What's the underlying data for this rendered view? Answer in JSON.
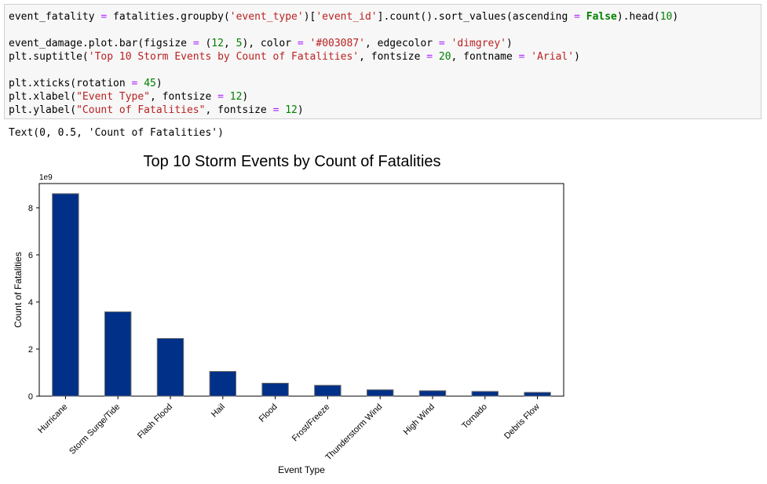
{
  "code_cell": {
    "lines": [
      [
        [
          "plain",
          "event_fatality "
        ],
        [
          "op",
          "="
        ],
        [
          "plain",
          " fatalities.groupby("
        ],
        [
          "str",
          "'event_type'"
        ],
        [
          "plain",
          ")["
        ],
        [
          "str",
          "'event_id'"
        ],
        [
          "plain",
          "].count().sort_values(ascending "
        ],
        [
          "op",
          "="
        ],
        [
          "plain",
          " "
        ],
        [
          "kw",
          "False"
        ],
        [
          "plain",
          ").head("
        ],
        [
          "num",
          "10"
        ],
        [
          "plain",
          ")"
        ]
      ],
      [],
      [
        [
          "plain",
          "event_damage.plot.bar(figsize "
        ],
        [
          "op",
          "="
        ],
        [
          "plain",
          " ("
        ],
        [
          "num",
          "12"
        ],
        [
          "plain",
          ", "
        ],
        [
          "num",
          "5"
        ],
        [
          "plain",
          "), color "
        ],
        [
          "op",
          "="
        ],
        [
          "plain",
          " "
        ],
        [
          "str",
          "'#003087'"
        ],
        [
          "plain",
          ", edgecolor "
        ],
        [
          "op",
          "="
        ],
        [
          "plain",
          " "
        ],
        [
          "str",
          "'dimgrey'"
        ],
        [
          "plain",
          ")"
        ]
      ],
      [
        [
          "plain",
          "plt.suptitle("
        ],
        [
          "str",
          "'Top 10 Storm Events by Count of Fatalities'"
        ],
        [
          "plain",
          ", fontsize "
        ],
        [
          "op",
          "="
        ],
        [
          "plain",
          " "
        ],
        [
          "num",
          "20"
        ],
        [
          "plain",
          ", fontname "
        ],
        [
          "op",
          "="
        ],
        [
          "plain",
          " "
        ],
        [
          "str",
          "'Arial'"
        ],
        [
          "plain",
          ")"
        ]
      ],
      [],
      [
        [
          "plain",
          "plt.xticks(rotation "
        ],
        [
          "op",
          "="
        ],
        [
          "plain",
          " "
        ],
        [
          "num",
          "45"
        ],
        [
          "plain",
          ")"
        ]
      ],
      [
        [
          "plain",
          "plt.xlabel("
        ],
        [
          "str",
          "\"Event Type\""
        ],
        [
          "plain",
          ", fontsize "
        ],
        [
          "op",
          "="
        ],
        [
          "plain",
          " "
        ],
        [
          "num",
          "12"
        ],
        [
          "plain",
          ")"
        ]
      ],
      [
        [
          "plain",
          "plt.ylabel("
        ],
        [
          "str",
          "\"Count of Fatalities\""
        ],
        [
          "plain",
          ", fontsize "
        ],
        [
          "op",
          "="
        ],
        [
          "plain",
          " "
        ],
        [
          "num",
          "12"
        ],
        [
          "plain",
          ")"
        ]
      ]
    ]
  },
  "output_text": "Text(0, 0.5, 'Count of Fatalities')",
  "chart_data": {
    "type": "bar",
    "title": "Top 10 Storm Events by Count of Fatalities",
    "xlabel": "Event Type",
    "ylabel": "Count of Fatalities",
    "y_offset_label": "1e9",
    "categories": [
      "Hurricane",
      "Storm Surge/Tide",
      "Flash Flood",
      "Hail",
      "Flood",
      "Frost/Freeze",
      "Thunderstorm Wind",
      "High Wind",
      "Tornado",
      "Debris Flow"
    ],
    "values": [
      8.6,
      3.58,
      2.45,
      1.05,
      0.55,
      0.46,
      0.27,
      0.23,
      0.2,
      0.16
    ],
    "yticks": [
      0,
      2,
      4,
      6,
      8
    ],
    "ylim": [
      0,
      9.03
    ],
    "bar_color": "#003087",
    "edge_color": "#696969",
    "grid": false,
    "xtick_rotation": 45
  }
}
